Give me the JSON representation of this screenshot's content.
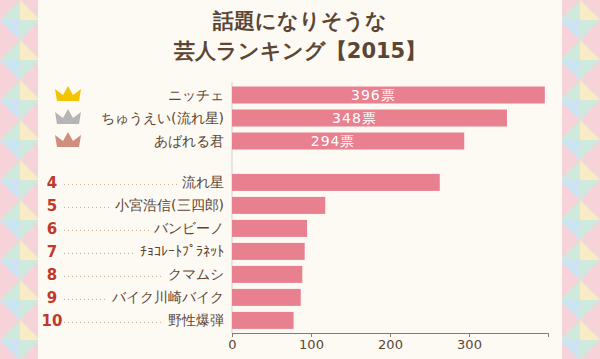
{
  "chart_data": {
    "type": "bar",
    "orientation": "horizontal",
    "title": "話題になりそうな\n芸人ランキング【2015】",
    "categories": [
      "ニッチェ",
      "ちゅうえい(流れ星)",
      "あばれる君",
      "流れ星",
      "小宮浩信(三四郎)",
      "バンビーノ",
      "ﾁｮｺﾚｰﾄﾌﾟﾗﾈｯﾄ",
      "クマムシ",
      "バイク川崎バイク",
      "野性爆弾"
    ],
    "ranks": [
      1,
      2,
      3,
      4,
      5,
      6,
      7,
      8,
      9,
      10
    ],
    "values": [
      396,
      348,
      294,
      263,
      118,
      95,
      92,
      89,
      87,
      78
    ],
    "value_labels": [
      "396票",
      "348票",
      "294票",
      null,
      null,
      null,
      null,
      null,
      null,
      null
    ],
    "data_labels": true,
    "color": "#e8808f",
    "xlim": [
      0,
      400
    ],
    "xticks": [
      0,
      100,
      200,
      300
    ],
    "grid": false
  }
}
